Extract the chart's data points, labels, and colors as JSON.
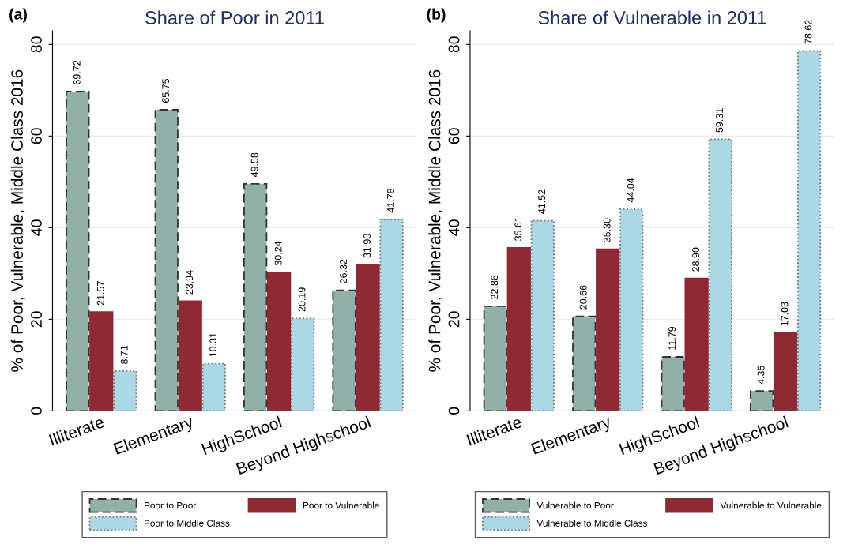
{
  "chart_data": [
    {
      "type": "bar",
      "title": "Share of Poor in 2011",
      "ylabel": "% of Poor, Vulnerable, Middle Class 2016",
      "annotations": [
        "(a)"
      ],
      "categories": [
        "Illiterate",
        "Elementary",
        "HighSchool",
        "Beyond Highschool"
      ],
      "series": [
        {
          "name": "Poor to Poor",
          "color": "#93b0a8",
          "line_style": "dashed",
          "values": [
            69.72,
            65.75,
            49.58,
            26.32
          ],
          "value_labels": [
            "69.72",
            "65.75",
            "49.58",
            "26.32"
          ]
        },
        {
          "name": "Poor to Vulnerable",
          "color": "#8e2a35",
          "line_style": "solid",
          "values": [
            21.57,
            23.94,
            30.24,
            31.9
          ],
          "value_labels": [
            "21.57",
            "23.94",
            "30.24",
            "31.90"
          ]
        },
        {
          "name": "Poor to Middle Class",
          "color": "#acd8e6",
          "line_style": "dotted",
          "values": [
            8.71,
            10.31,
            20.19,
            41.78
          ],
          "value_labels": [
            "8.71",
            "10.31",
            "20.19",
            "41.78"
          ]
        }
      ],
      "ylim": [
        0,
        83
      ],
      "yticks": [
        0,
        20,
        40,
        60,
        80
      ],
      "grid": "y",
      "legend": "bottom"
    },
    {
      "type": "bar",
      "title": "Share of Vulnerable in 2011",
      "ylabel": "% of Poor, Vulnerable, Middle Class 2016",
      "annotations": [
        "(b)"
      ],
      "categories": [
        "Illiterate",
        "Elementary",
        "HighSchool",
        "Beyond Highschool"
      ],
      "series": [
        {
          "name": "Vulnerable to Poor",
          "color": "#93b0a8",
          "line_style": "dashed",
          "values": [
            22.86,
            20.66,
            11.79,
            4.35
          ],
          "value_labels": [
            "22.86",
            "20.66",
            "11.79",
            "4.35"
          ]
        },
        {
          "name": "Vulnerable to Vulnerable",
          "color": "#8e2a35",
          "line_style": "solid",
          "values": [
            35.61,
            35.3,
            28.9,
            17.03
          ],
          "value_labels": [
            "35.61",
            "35.30",
            "28.90",
            "17.03"
          ]
        },
        {
          "name": "Vulnerable to Middle Class",
          "color": "#acd8e6",
          "line_style": "dotted",
          "values": [
            41.52,
            44.04,
            59.31,
            78.62
          ],
          "value_labels": [
            "41.52",
            "44.04",
            "59.31",
            "78.62"
          ]
        }
      ],
      "ylim": [
        0,
        83
      ],
      "yticks": [
        0,
        20,
        40,
        60,
        80
      ],
      "grid": "y",
      "legend": "bottom"
    }
  ]
}
